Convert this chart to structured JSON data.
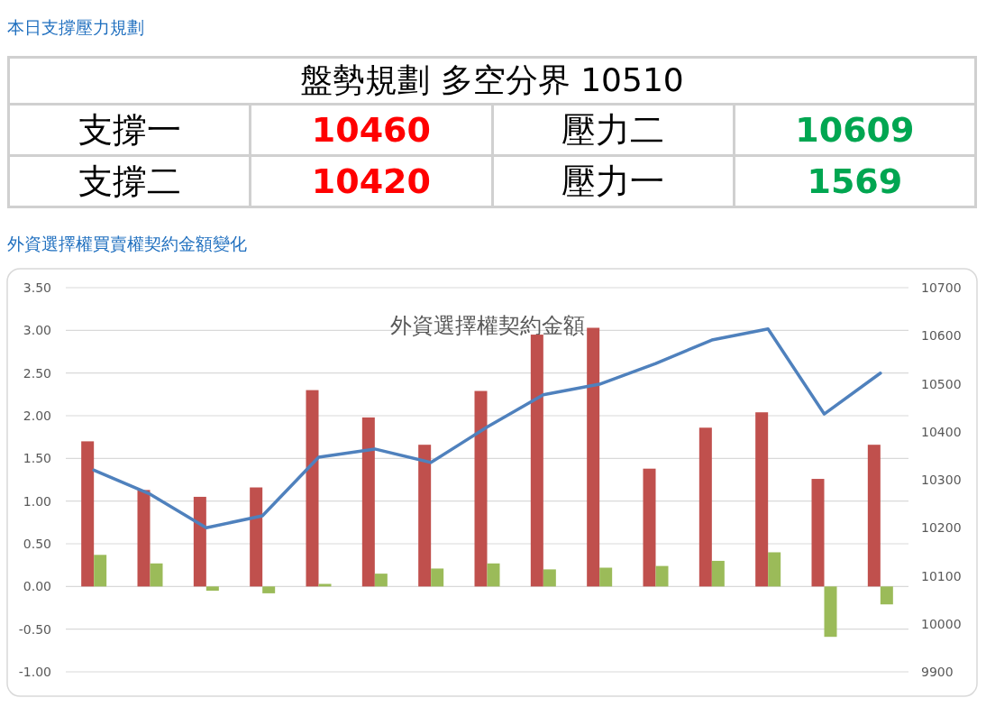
{
  "chart_data": [
    {
      "type": "other",
      "title": "本日支撐壓力規劃",
      "annotations": [
        "盤勢規劃 多空分界 10510",
        "支撐一",
        "10460",
        "壓力二",
        "10609",
        "支撐二",
        "10420",
        "壓力一",
        "1569"
      ]
    },
    {
      "type": "bar",
      "title": "外資選擇權買賣權契約金額變化",
      "subtitle": "外資選擇權契約金額",
      "categories": [
        null,
        null,
        null,
        null,
        null,
        null,
        null,
        null,
        null,
        null,
        null,
        null,
        null,
        null,
        null
      ],
      "series": [
        {
          "type": "bar",
          "color": "#c0504d",
          "values": [
            1.7,
            1.13,
            1.05,
            1.16,
            2.3,
            1.98,
            1.66,
            2.29,
            2.95,
            3.03,
            1.38,
            1.86,
            2.04,
            1.26,
            1.66
          ]
        },
        {
          "type": "bar",
          "color": "#9bbb59",
          "values": [
            0.37,
            0.27,
            -0.05,
            -0.08,
            0.03,
            0.15,
            0.21,
            0.27,
            0.2,
            0.22,
            0.24,
            0.3,
            0.4,
            -0.59,
            -0.21
          ]
        },
        {
          "type": "line",
          "axis": "y2",
          "color": "#4f81bd",
          "values": [
            10320,
            10270,
            10200,
            10225,
            10347,
            10364,
            10336,
            10410,
            10477,
            10499,
            10542,
            10591,
            10614,
            10437,
            10522
          ]
        }
      ],
      "ylim": [
        -1.0,
        3.5
      ],
      "yticks": [
        {
          "value": 3.5,
          "label": "3.50"
        },
        {
          "value": 3.0,
          "label": "3.00"
        },
        {
          "value": 2.5,
          "label": "2.50"
        },
        {
          "value": 2.0,
          "label": "2.00"
        },
        {
          "value": 1.5,
          "label": "1.50"
        },
        {
          "value": 1.0,
          "label": "1.00"
        },
        {
          "value": 0.5,
          "label": "0.50"
        },
        {
          "value": 0.0,
          "label": "0.00"
        },
        {
          "value": -0.5,
          "label": "-0.50"
        },
        {
          "value": -1.0,
          "label": "-1.00"
        }
      ],
      "y2lim": [
        9900,
        10700
      ],
      "y2ticks": [
        10700,
        10600,
        10500,
        10400,
        10300,
        10200,
        10100,
        10000,
        9900
      ],
      "grid": "y"
    }
  ]
}
